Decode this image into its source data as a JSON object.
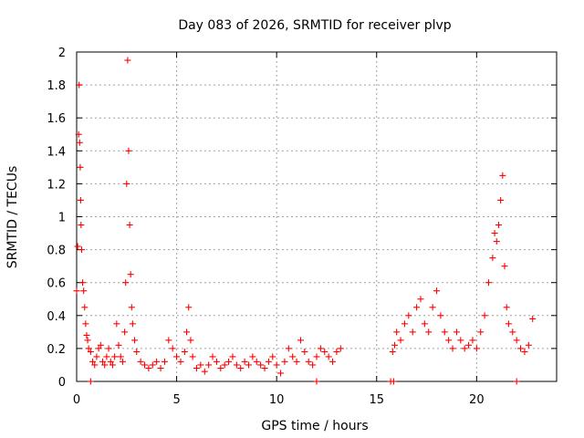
{
  "chart_data": {
    "type": "scatter",
    "title": "Day 083 of 2026, SRMTID for receiver plvp",
    "xlabel": "GPS time / hours",
    "ylabel": "SRMTID / TECUs",
    "xlim": [
      0,
      24
    ],
    "ylim": [
      0,
      2
    ],
    "xticks": [
      0,
      5,
      10,
      15,
      20
    ],
    "yticks": [
      0,
      0.2,
      0.4,
      0.6,
      0.8,
      1,
      1.2,
      1.4,
      1.6,
      1.8,
      2
    ],
    "xtick_labels": [
      "0",
      "5",
      "10",
      "15",
      "20"
    ],
    "ytick_labels": [
      "0",
      "0.2",
      "0.4",
      "0.6",
      "0.8",
      "1",
      "1.2",
      "1.4",
      "1.6",
      "1.8",
      "2"
    ],
    "grid": true,
    "marker": "+",
    "series": [
      {
        "name": "SRMTID",
        "color": "#ff0000",
        "x": [
          0.0,
          0.05,
          0.1,
          0.12,
          0.15,
          0.18,
          0.2,
          0.22,
          0.25,
          0.3,
          0.35,
          0.4,
          0.45,
          0.5,
          0.55,
          0.6,
          0.7,
          0.8,
          0.9,
          1.0,
          1.1,
          1.2,
          1.3,
          1.4,
          1.5,
          1.6,
          1.7,
          1.8,
          1.9,
          2.0,
          2.1,
          2.2,
          2.3,
          2.4,
          2.45,
          2.5,
          2.55,
          2.6,
          2.65,
          2.7,
          2.75,
          2.8,
          2.9,
          3.0,
          3.2,
          3.4,
          3.6,
          3.8,
          4.0,
          4.2,
          4.4,
          4.6,
          4.8,
          5.0,
          5.2,
          5.4,
          5.5,
          5.6,
          5.7,
          5.8,
          6.0,
          6.2,
          6.4,
          6.6,
          6.8,
          7.0,
          7.2,
          7.4,
          7.6,
          7.8,
          8.0,
          8.2,
          8.4,
          8.6,
          8.8,
          9.0,
          9.2,
          9.4,
          9.6,
          9.8,
          10.0,
          10.2,
          10.4,
          10.6,
          10.8,
          11.0,
          11.2,
          11.4,
          11.6,
          11.8,
          12.0,
          12.2,
          12.4,
          12.6,
          12.8,
          13.0,
          13.2,
          15.8,
          15.9,
          16.0,
          16.2,
          16.4,
          16.6,
          16.8,
          17.0,
          17.2,
          17.4,
          17.6,
          17.8,
          18.0,
          18.2,
          18.4,
          18.6,
          18.8,
          19.0,
          19.2,
          19.4,
          19.6,
          19.8,
          20.0,
          20.2,
          20.4,
          20.6,
          20.8,
          20.9,
          21.0,
          21.1,
          21.2,
          21.3,
          21.4,
          21.5,
          21.6,
          21.8,
          22.0,
          22.2,
          22.4,
          22.6,
          22.8
        ],
        "y": [
          0.55,
          0.82,
          1.5,
          1.8,
          1.45,
          1.3,
          1.1,
          0.95,
          0.8,
          0.6,
          0.55,
          0.45,
          0.35,
          0.28,
          0.25,
          0.2,
          0.18,
          0.12,
          0.1,
          0.15,
          0.2,
          0.22,
          0.12,
          0.1,
          0.15,
          0.2,
          0.12,
          0.1,
          0.15,
          0.35,
          0.22,
          0.15,
          0.12,
          0.3,
          0.6,
          1.2,
          1.95,
          1.4,
          0.95,
          0.65,
          0.45,
          0.35,
          0.25,
          0.18,
          0.12,
          0.1,
          0.08,
          0.1,
          0.12,
          0.08,
          0.12,
          0.25,
          0.2,
          0.15,
          0.12,
          0.18,
          0.3,
          0.45,
          0.25,
          0.15,
          0.08,
          0.1,
          0.06,
          0.1,
          0.15,
          0.12,
          0.08,
          0.1,
          0.12,
          0.15,
          0.1,
          0.08,
          0.12,
          0.1,
          0.15,
          0.12,
          0.1,
          0.08,
          0.12,
          0.15,
          0.1,
          0.05,
          0.12,
          0.2,
          0.15,
          0.12,
          0.25,
          0.18,
          0.12,
          0.1,
          0.15,
          0.2,
          0.18,
          0.15,
          0.12,
          0.18,
          0.2,
          0.18,
          0.22,
          0.3,
          0.25,
          0.35,
          0.4,
          0.3,
          0.45,
          0.5,
          0.35,
          0.3,
          0.45,
          0.55,
          0.4,
          0.3,
          0.25,
          0.2,
          0.3,
          0.25,
          0.2,
          0.22,
          0.25,
          0.2,
          0.3,
          0.4,
          0.6,
          0.75,
          0.9,
          0.85,
          0.95,
          1.1,
          1.25,
          0.7,
          0.45,
          0.35,
          0.3,
          0.25,
          0.2,
          0.18,
          0.22,
          0.38
        ]
      }
    ],
    "zero_markers_x": [
      0.7,
      15.7,
      15.85,
      12.0,
      22.0
    ]
  }
}
